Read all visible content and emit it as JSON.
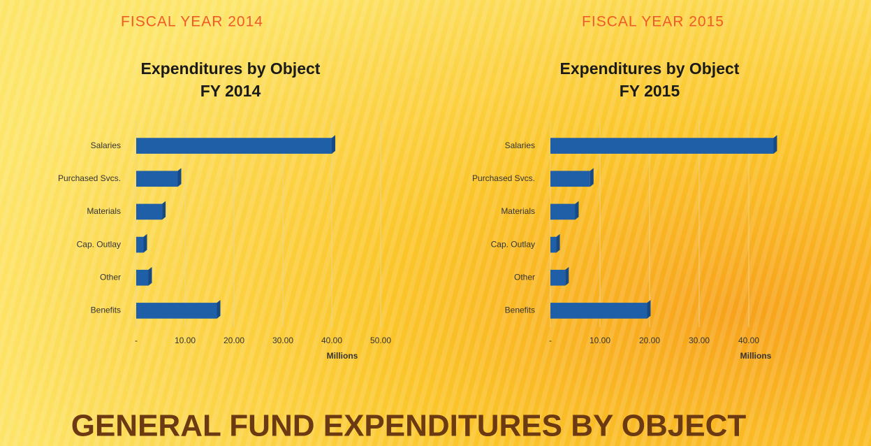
{
  "header": {
    "left": "FISCAL YEAR 2014",
    "right": "FISCAL YEAR 2015"
  },
  "slide_title": "GENERAL FUND EXPENDITURES BY OBJECT",
  "chart_data": [
    {
      "type": "bar",
      "orientation": "horizontal",
      "title": "Expenditures by Object",
      "subtitle": "FY 2014",
      "x_label": "Millions",
      "categories": [
        "Salaries",
        "Purchased Svcs.",
        "Materials",
        "Cap. Outlay",
        "Other",
        "Benefits"
      ],
      "values": [
        40,
        8.5,
        5.3,
        1.5,
        2.5,
        16.5
      ],
      "color": "#1f5fa8",
      "xlim": [
        0,
        50
      ],
      "xticks": [
        {
          "value": 0,
          "label": "-"
        },
        {
          "value": 10,
          "label": "10.00"
        },
        {
          "value": 20,
          "label": "20.00"
        },
        {
          "value": 30,
          "label": "30.00"
        },
        {
          "value": 40,
          "label": "40.00"
        },
        {
          "value": 50,
          "label": "50.00"
        }
      ],
      "grid": true
    },
    {
      "type": "bar",
      "orientation": "horizontal",
      "title": "Expenditures by Object",
      "subtitle": "FY 2015",
      "x_label": "Millions",
      "categories": [
        "Salaries",
        "Purchased Svcs.",
        "Materials",
        "Cap. Outlay",
        "Other",
        "Benefits"
      ],
      "values": [
        45,
        8,
        5,
        1.2,
        3,
        19.5
      ],
      "color": "#1f5fa8",
      "xlim": [
        0,
        50
      ],
      "xticks": [
        {
          "value": 0,
          "label": "-"
        },
        {
          "value": 10,
          "label": "10.00"
        },
        {
          "value": 20,
          "label": "20.00"
        },
        {
          "value": 30,
          "label": "30.00"
        },
        {
          "value": 40,
          "label": "40.00"
        }
      ],
      "grid": true
    }
  ]
}
